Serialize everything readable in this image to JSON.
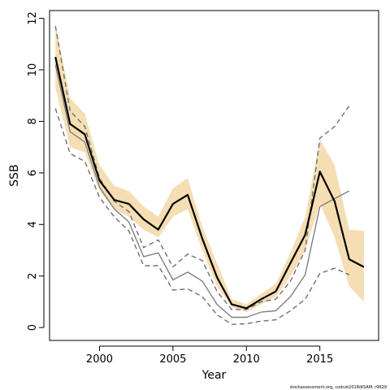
{
  "chart_data": {
    "type": "line",
    "xlabel": "Year",
    "ylabel": "SSB",
    "xlim": [
      1996.6,
      2019.0
    ],
    "ylim": [
      -0.5,
      12.3
    ],
    "x_ticks": [
      2000,
      2005,
      2010,
      2015
    ],
    "y_ticks": [
      0,
      2,
      4,
      6,
      8,
      10,
      12
    ],
    "grid": false,
    "legend": "none",
    "footnote": "stockassessment.org, codcat2018dtSAM, r9629",
    "colors": {
      "band": "#f5deb3",
      "estimate": "#000000",
      "retro": "#808080",
      "retro_ci": "#707070"
    },
    "confidence_band": {
      "x": [
        1997,
        1998,
        1999,
        2000,
        2001,
        2002,
        2003,
        2004,
        2005,
        2006,
        2007,
        2008,
        2009,
        2010,
        2011,
        2012,
        2013,
        2014,
        2015,
        2016,
        2017,
        2018
      ],
      "lower": [
        9.3,
        7.0,
        6.8,
        5.3,
        4.6,
        4.3,
        3.8,
        3.5,
        4.3,
        4.6,
        3.0,
        1.6,
        0.8,
        0.6,
        0.9,
        1.2,
        2.0,
        3.0,
        4.8,
        3.5,
        1.6,
        1.0
      ],
      "upper": [
        11.8,
        8.9,
        8.3,
        6.3,
        5.5,
        5.3,
        4.7,
        4.3,
        5.4,
        5.8,
        3.9,
        2.5,
        1.1,
        0.9,
        1.3,
        1.7,
        2.9,
        4.3,
        7.3,
        6.3,
        3.8,
        3.75
      ]
    },
    "series": [
      {
        "role": "estimate",
        "x": [
          1997,
          1998,
          1999,
          2000,
          2001,
          2002,
          2003,
          2004,
          2005,
          2006,
          2007,
          2008,
          2009,
          2010,
          2011,
          2012,
          2013,
          2014,
          2015,
          2016,
          2017,
          2018
        ],
        "values": [
          10.5,
          7.9,
          7.5,
          5.7,
          4.95,
          4.8,
          4.2,
          3.8,
          4.8,
          5.15,
          3.45,
          1.95,
          0.9,
          0.75,
          1.1,
          1.4,
          2.5,
          3.6,
          6.05,
          4.9,
          2.65,
          2.35
        ]
      },
      {
        "role": "retro-estimate",
        "x": [
          1997,
          1998,
          1999,
          2000,
          2001,
          2002,
          2003,
          2004,
          2005,
          2006,
          2007,
          2008,
          2009,
          2010,
          2011,
          2012,
          2013,
          2014,
          2015,
          2016,
          2017
        ],
        "values": [
          10.2,
          7.6,
          7.2,
          5.45,
          4.6,
          4.1,
          2.75,
          2.9,
          1.85,
          2.15,
          1.8,
          0.9,
          0.4,
          0.4,
          0.6,
          0.65,
          1.2,
          2.05,
          4.7,
          5.0,
          5.3
        ]
      },
      {
        "role": "retro-upper",
        "x": [
          1997,
          1998,
          1999,
          2000,
          2001,
          2002,
          2003,
          2004,
          2005,
          2006,
          2007,
          2008,
          2009,
          2010,
          2011,
          2012,
          2013,
          2014,
          2015,
          2016,
          2017
        ],
        "values": [
          11.7,
          8.4,
          7.8,
          5.8,
          4.9,
          4.5,
          3.1,
          3.4,
          2.35,
          2.85,
          2.6,
          1.4,
          0.7,
          0.7,
          1.0,
          1.1,
          1.8,
          3.0,
          7.35,
          7.8,
          8.6
        ]
      },
      {
        "role": "retro-lower",
        "x": [
          1997,
          1998,
          1999,
          2000,
          2001,
          2002,
          2003,
          2004,
          2005,
          2006,
          2007,
          2008,
          2009,
          2010,
          2011,
          2012,
          2013,
          2014,
          2015,
          2016,
          2017
        ],
        "values": [
          8.5,
          6.75,
          6.45,
          5.05,
          4.3,
          3.75,
          2.4,
          2.4,
          1.45,
          1.5,
          1.2,
          0.5,
          0.12,
          0.15,
          0.25,
          0.3,
          0.65,
          1.1,
          2.1,
          2.3,
          2.05
        ]
      }
    ]
  }
}
